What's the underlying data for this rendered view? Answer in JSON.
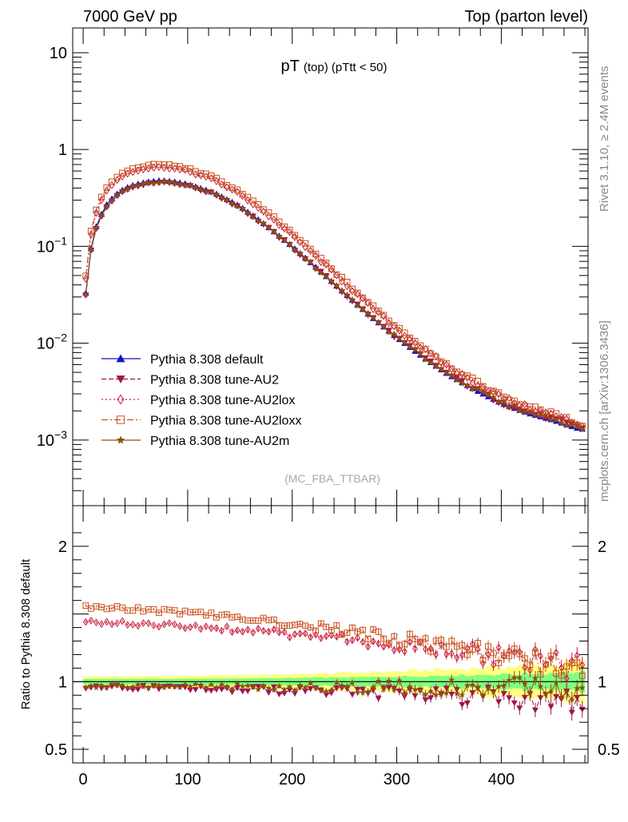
{
  "header": {
    "left": "7000 GeV pp",
    "right": "Top (parton level)"
  },
  "side_labels": {
    "rivet": "Rivet 3.1.10, ≥ 2.4M events",
    "mcplots": "mcplots.cern.ch [arXiv:1306.3436]"
  },
  "chart_data": [
    {
      "type": "line",
      "panel": "main",
      "title_main": "pT",
      "title_sub": "(top) (pTtt < 50)",
      "watermark": "(MC_FBA_TTBAR)",
      "yscale": "log",
      "xlim": [
        -10,
        483
      ],
      "ylim": [
        0.00021,
        18
      ],
      "y_tick_labels": [
        {
          "value": 10,
          "base": "10",
          "exp": ""
        },
        {
          "value": 1,
          "base": "1",
          "exp": ""
        },
        {
          "value": 0.1,
          "base": "10",
          "exp": "−1"
        },
        {
          "value": 0.01,
          "base": "10",
          "exp": "−2"
        },
        {
          "value": 0.001,
          "base": "10",
          "exp": "−3"
        }
      ],
      "legend_position": "bottom-left",
      "series": [
        {
          "name": "Pythia 8.308 default",
          "marker": "triangle-up",
          "line": "solid",
          "color": "#1010c8",
          "scale": 1.0
        },
        {
          "name": "Pythia 8.308 tune-AU2",
          "marker": "triangle-down",
          "line": "dashed",
          "color": "#a0144e",
          "scale": 0.95
        },
        {
          "name": "Pythia 8.308 tune-AU2lox",
          "marker": "diamond-open",
          "line": "dotted",
          "color": "#c81e3c",
          "scale": 1.4
        },
        {
          "name": "Pythia 8.308 tune-AU2loxx",
          "marker": "square-open",
          "line": "dashdot",
          "color": "#c8501e",
          "scale": 1.5
        },
        {
          "name": "Pythia 8.308 tune-AU2m",
          "marker": "star",
          "line": "solid",
          "color": "#8c500a",
          "scale": 0.96
        }
      ],
      "reference_shape": {
        "x": [
          2.5,
          7.5,
          12.5,
          17.5,
          22.5,
          27.5,
          35,
          45,
          55,
          65,
          75,
          85,
          100,
          125,
          150,
          175,
          200,
          225,
          250,
          275,
          300,
          325,
          350,
          375,
          400,
          425,
          450,
          475
        ],
        "y": [
          0.033,
          0.095,
          0.16,
          0.215,
          0.27,
          0.31,
          0.37,
          0.42,
          0.45,
          0.47,
          0.48,
          0.47,
          0.44,
          0.36,
          0.26,
          0.165,
          0.1,
          0.058,
          0.033,
          0.019,
          0.0115,
          0.0072,
          0.0047,
          0.0033,
          0.0024,
          0.0019,
          0.0016,
          0.0013
        ]
      }
    },
    {
      "type": "line",
      "panel": "ratio",
      "ylabel": "Ratio to Pythia 8.308 default",
      "xlim": [
        -10,
        483
      ],
      "ylim": [
        0.4,
        2.3
      ],
      "y_ticks": [
        0.5,
        1,
        2
      ],
      "y_tick_labels": [
        "0.5",
        "1",
        "2"
      ],
      "x_ticks": [
        0,
        100,
        200,
        300,
        400
      ],
      "x_tick_labels": [
        "0",
        "100",
        "200",
        "300",
        "400"
      ],
      "bands": [
        {
          "color": "#ffff80",
          "half_width_at_start": 0.04,
          "half_width_at_end": 0.14
        },
        {
          "color": "#80ff80",
          "half_width_at_start": 0.02,
          "half_width_at_end": 0.07
        }
      ],
      "series": [
        {
          "name": "Pythia 8.308 tune-AU2",
          "color": "#a0144e",
          "ratio_start": 0.96,
          "ratio_end": 0.86
        },
        {
          "name": "Pythia 8.308 tune-AU2lox",
          "color": "#c81e3c",
          "ratio_start": 1.44,
          "ratio_end": 1.1
        },
        {
          "name": "Pythia 8.308 tune-AU2loxx",
          "color": "#c8501e",
          "ratio_start": 1.55,
          "ratio_end": 1.08
        },
        {
          "name": "Pythia 8.308 tune-AU2m",
          "color": "#8c500a",
          "ratio_start": 0.97,
          "ratio_end": 0.95
        }
      ]
    }
  ]
}
